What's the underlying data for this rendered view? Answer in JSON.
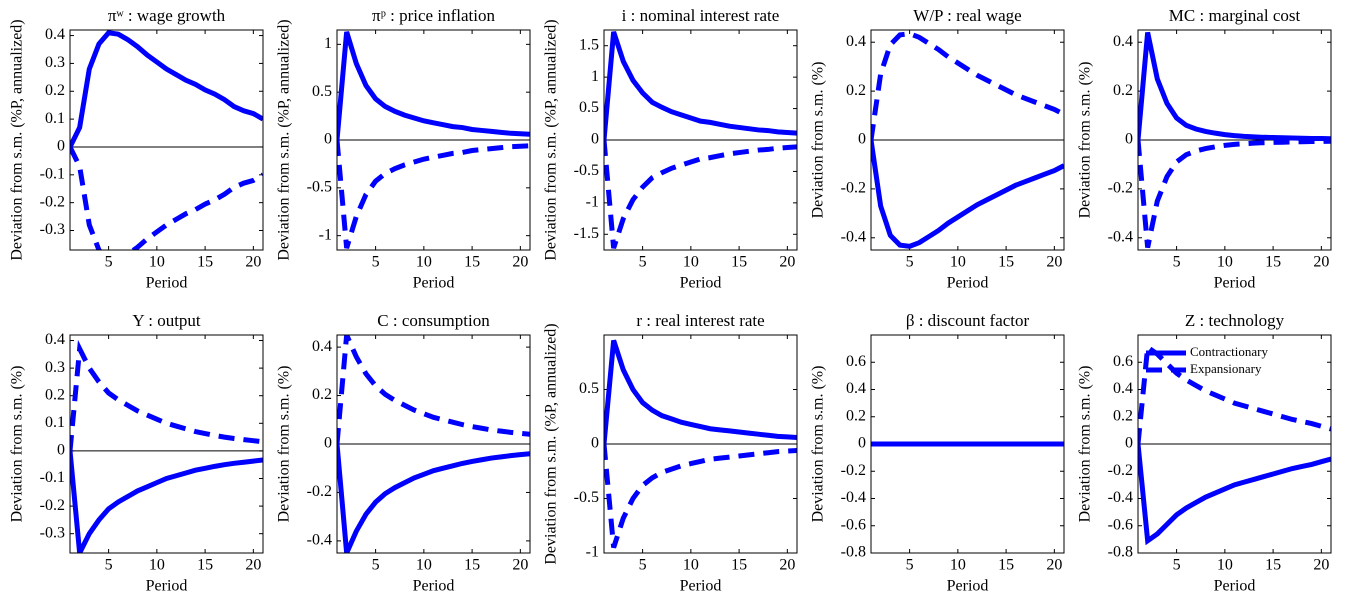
{
  "chart_data": [
    {
      "type": "line",
      "title": "πʷ : wage growth",
      "xlabel": "Period",
      "ylabel": "Deviation from s.m. (%P, annualized)",
      "x": [
        1,
        2,
        3,
        4,
        5,
        6,
        7,
        8,
        9,
        10,
        11,
        12,
        13,
        14,
        15,
        16,
        17,
        18,
        19,
        20,
        21
      ],
      "xlim": [
        1,
        21
      ],
      "xticks": [
        5,
        10,
        15,
        20
      ],
      "ylim": [
        -0.37,
        0.42
      ],
      "yticks": [
        -0.3,
        -0.2,
        -0.1,
        0,
        0.1,
        0.2,
        0.3,
        0.4
      ],
      "zero_line": true,
      "series": [
        {
          "color": "#0000ff",
          "style": "solid",
          "values": [
            0,
            0.07,
            0.28,
            0.37,
            0.41,
            0.405,
            0.385,
            0.36,
            0.33,
            0.305,
            0.28,
            0.26,
            0.24,
            0.225,
            0.205,
            0.19,
            0.17,
            0.145,
            0.13,
            0.12,
            0.1
          ]
        },
        {
          "color": "#0000ff",
          "style": "dashed",
          "values": [
            0,
            -0.07,
            -0.28,
            -0.37,
            -0.41,
            -0.405,
            -0.385,
            -0.36,
            -0.33,
            -0.305,
            -0.28,
            -0.26,
            -0.24,
            -0.225,
            -0.205,
            -0.19,
            -0.17,
            -0.145,
            -0.13,
            -0.12,
            -0.1
          ]
        }
      ]
    },
    {
      "type": "line",
      "title": "πᵖ : price inflation",
      "xlabel": "Period",
      "ylabel": "Deviation from s.m. (%P, annualized)",
      "x": [
        1,
        2,
        3,
        4,
        5,
        6,
        7,
        8,
        9,
        10,
        11,
        12,
        13,
        14,
        15,
        16,
        17,
        18,
        19,
        20,
        21
      ],
      "xlim": [
        1,
        21
      ],
      "xticks": [
        5,
        10,
        15,
        20
      ],
      "ylim": [
        -1.15,
        1.15
      ],
      "yticks": [
        -1,
        -0.5,
        0,
        0.5,
        1
      ],
      "zero_line": true,
      "series": [
        {
          "color": "#0000ff",
          "style": "solid",
          "values": [
            0,
            1.13,
            0.8,
            0.57,
            0.43,
            0.35,
            0.3,
            0.26,
            0.23,
            0.2,
            0.18,
            0.16,
            0.14,
            0.13,
            0.11,
            0.1,
            0.09,
            0.08,
            0.07,
            0.065,
            0.06
          ]
        },
        {
          "color": "#0000ff",
          "style": "dashed",
          "values": [
            0,
            -1.13,
            -0.8,
            -0.57,
            -0.43,
            -0.35,
            -0.3,
            -0.26,
            -0.23,
            -0.2,
            -0.18,
            -0.16,
            -0.14,
            -0.13,
            -0.11,
            -0.1,
            -0.09,
            -0.08,
            -0.07,
            -0.065,
            -0.06
          ]
        }
      ]
    },
    {
      "type": "line",
      "title": "i : nominal interest rate",
      "xlabel": "Period",
      "ylabel": "Deviation from s.m. (%P, annualized)",
      "x": [
        1,
        2,
        3,
        4,
        5,
        6,
        7,
        8,
        9,
        10,
        11,
        12,
        13,
        14,
        15,
        16,
        17,
        18,
        19,
        20,
        21
      ],
      "xlim": [
        1,
        21
      ],
      "xticks": [
        5,
        10,
        15,
        20
      ],
      "ylim": [
        -1.75,
        1.75
      ],
      "yticks": [
        -1.5,
        -1,
        -0.5,
        0,
        0.5,
        1,
        1.5
      ],
      "zero_line": true,
      "series": [
        {
          "color": "#0000ff",
          "style": "solid",
          "values": [
            0,
            1.72,
            1.25,
            0.95,
            0.75,
            0.6,
            0.52,
            0.45,
            0.4,
            0.35,
            0.3,
            0.28,
            0.25,
            0.22,
            0.2,
            0.18,
            0.16,
            0.15,
            0.13,
            0.12,
            0.11
          ]
        },
        {
          "color": "#0000ff",
          "style": "dashed",
          "values": [
            0,
            -1.72,
            -1.25,
            -0.95,
            -0.75,
            -0.6,
            -0.52,
            -0.45,
            -0.4,
            -0.35,
            -0.3,
            -0.28,
            -0.25,
            -0.22,
            -0.2,
            -0.18,
            -0.16,
            -0.15,
            -0.13,
            -0.12,
            -0.11
          ]
        }
      ]
    },
    {
      "type": "line",
      "title": "W/P : real wage",
      "xlabel": "Period",
      "ylabel": "Deviation from s.m. (%)",
      "x": [
        1,
        2,
        3,
        4,
        5,
        6,
        7,
        8,
        9,
        10,
        11,
        12,
        13,
        14,
        15,
        16,
        17,
        18,
        19,
        20,
        21
      ],
      "xlim": [
        1,
        21
      ],
      "xticks": [
        5,
        10,
        15,
        20
      ],
      "ylim": [
        -0.45,
        0.45
      ],
      "yticks": [
        -0.4,
        -0.2,
        0,
        0.2,
        0.4
      ],
      "zero_line": true,
      "series": [
        {
          "color": "#0000ff",
          "style": "solid",
          "values": [
            0,
            -0.27,
            -0.39,
            -0.43,
            -0.435,
            -0.42,
            -0.395,
            -0.37,
            -0.34,
            -0.315,
            -0.29,
            -0.265,
            -0.245,
            -0.225,
            -0.205,
            -0.185,
            -0.17,
            -0.155,
            -0.14,
            -0.125,
            -0.105
          ]
        },
        {
          "color": "#0000ff",
          "style": "dashed",
          "values": [
            0,
            0.27,
            0.39,
            0.43,
            0.435,
            0.42,
            0.395,
            0.37,
            0.34,
            0.315,
            0.29,
            0.265,
            0.245,
            0.225,
            0.205,
            0.185,
            0.17,
            0.155,
            0.14,
            0.125,
            0.105
          ]
        }
      ]
    },
    {
      "type": "line",
      "title": "MC : marginal cost",
      "xlabel": "Period",
      "ylabel": "Deviation from s.m. (%)",
      "x": [
        1,
        2,
        3,
        4,
        5,
        6,
        7,
        8,
        9,
        10,
        11,
        12,
        13,
        14,
        15,
        16,
        17,
        18,
        19,
        20,
        21
      ],
      "xlim": [
        1,
        21
      ],
      "xticks": [
        5,
        10,
        15,
        20
      ],
      "ylim": [
        -0.45,
        0.45
      ],
      "yticks": [
        -0.4,
        -0.2,
        0,
        0.2,
        0.4
      ],
      "zero_line": true,
      "series": [
        {
          "color": "#0000ff",
          "style": "solid",
          "values": [
            0,
            0.44,
            0.25,
            0.15,
            0.09,
            0.06,
            0.045,
            0.035,
            0.028,
            0.022,
            0.018,
            0.015,
            0.013,
            0.011,
            0.01,
            0.009,
            0.008,
            0.007,
            0.006,
            0.006,
            0.005
          ]
        },
        {
          "color": "#0000ff",
          "style": "dashed",
          "values": [
            0,
            -0.44,
            -0.25,
            -0.15,
            -0.09,
            -0.06,
            -0.045,
            -0.035,
            -0.028,
            -0.022,
            -0.018,
            -0.015,
            -0.013,
            -0.011,
            -0.01,
            -0.009,
            -0.008,
            -0.007,
            -0.006,
            -0.006,
            -0.005
          ]
        }
      ]
    },
    {
      "type": "line",
      "title": "Y : output",
      "xlabel": "Period",
      "ylabel": "Deviation from s.m. (%)",
      "x": [
        1,
        2,
        3,
        4,
        5,
        6,
        7,
        8,
        9,
        10,
        11,
        12,
        13,
        14,
        15,
        16,
        17,
        18,
        19,
        20,
        21
      ],
      "xlim": [
        1,
        21
      ],
      "xticks": [
        5,
        10,
        15,
        20
      ],
      "ylim": [
        -0.37,
        0.42
      ],
      "yticks": [
        -0.3,
        -0.2,
        -0.1,
        0,
        0.1,
        0.2,
        0.3,
        0.4
      ],
      "zero_line": true,
      "series": [
        {
          "color": "#0000ff",
          "style": "solid",
          "values": [
            0,
            -0.37,
            -0.3,
            -0.25,
            -0.21,
            -0.185,
            -0.165,
            -0.145,
            -0.13,
            -0.115,
            -0.1,
            -0.09,
            -0.08,
            -0.07,
            -0.063,
            -0.056,
            -0.05,
            -0.045,
            -0.041,
            -0.037,
            -0.033
          ]
        },
        {
          "color": "#0000ff",
          "style": "dashed",
          "values": [
            0,
            0.37,
            0.3,
            0.25,
            0.21,
            0.185,
            0.165,
            0.145,
            0.13,
            0.115,
            0.1,
            0.09,
            0.08,
            0.07,
            0.063,
            0.056,
            0.05,
            0.045,
            0.041,
            0.037,
            0.033
          ]
        }
      ]
    },
    {
      "type": "line",
      "title": "C : consumption",
      "xlabel": "Period",
      "ylabel": "Deviation from s.m. (%)",
      "x": [
        1,
        2,
        3,
        4,
        5,
        6,
        7,
        8,
        9,
        10,
        11,
        12,
        13,
        14,
        15,
        16,
        17,
        18,
        19,
        20,
        21
      ],
      "xlim": [
        1,
        21
      ],
      "xticks": [
        5,
        10,
        15,
        20
      ],
      "ylim": [
        -0.45,
        0.45
      ],
      "yticks": [
        -0.4,
        -0.2,
        0,
        0.2,
        0.4
      ],
      "zero_line": true,
      "series": [
        {
          "color": "#0000ff",
          "style": "solid",
          "values": [
            0,
            -0.45,
            -0.36,
            -0.29,
            -0.24,
            -0.205,
            -0.18,
            -0.16,
            -0.14,
            -0.125,
            -0.11,
            -0.1,
            -0.09,
            -0.08,
            -0.072,
            -0.065,
            -0.058,
            -0.053,
            -0.048,
            -0.044,
            -0.04
          ]
        },
        {
          "color": "#0000ff",
          "style": "dashed",
          "values": [
            0,
            0.45,
            0.36,
            0.29,
            0.24,
            0.205,
            0.18,
            0.16,
            0.14,
            0.125,
            0.11,
            0.1,
            0.09,
            0.08,
            0.072,
            0.065,
            0.058,
            0.053,
            0.048,
            0.044,
            0.04
          ]
        }
      ]
    },
    {
      "type": "line",
      "title": "r : real interest rate",
      "xlabel": "Period",
      "ylabel": "Deviation from s.m. (%P, annualized)",
      "x": [
        1,
        2,
        3,
        4,
        5,
        6,
        7,
        8,
        9,
        10,
        11,
        12,
        13,
        14,
        15,
        16,
        17,
        18,
        19,
        20,
        21
      ],
      "xlim": [
        1,
        21
      ],
      "xticks": [
        5,
        10,
        15,
        20
      ],
      "ylim": [
        -1,
        1
      ],
      "yticks": [
        -1,
        -0.5,
        0,
        0.5
      ],
      "zero_line": true,
      "series": [
        {
          "color": "#0000ff",
          "style": "solid",
          "values": [
            0,
            0.95,
            0.68,
            0.5,
            0.38,
            0.31,
            0.26,
            0.23,
            0.2,
            0.18,
            0.16,
            0.14,
            0.13,
            0.12,
            0.11,
            0.1,
            0.09,
            0.08,
            0.07,
            0.065,
            0.06
          ]
        },
        {
          "color": "#0000ff",
          "style": "dashed",
          "values": [
            0,
            -0.95,
            -0.68,
            -0.5,
            -0.38,
            -0.31,
            -0.26,
            -0.23,
            -0.2,
            -0.18,
            -0.16,
            -0.14,
            -0.13,
            -0.12,
            -0.11,
            -0.1,
            -0.09,
            -0.08,
            -0.07,
            -0.065,
            -0.06
          ]
        }
      ]
    },
    {
      "type": "line",
      "title": "β : discount factor",
      "xlabel": "Period",
      "ylabel": "Deviation from s.m. (%)",
      "x": [
        1,
        2,
        3,
        4,
        5,
        6,
        7,
        8,
        9,
        10,
        11,
        12,
        13,
        14,
        15,
        16,
        17,
        18,
        19,
        20,
        21
      ],
      "xlim": [
        1,
        21
      ],
      "xticks": [
        5,
        10,
        15,
        20
      ],
      "ylim": [
        -0.8,
        0.8
      ],
      "yticks": [
        -0.8,
        -0.6,
        -0.4,
        -0.2,
        0,
        0.2,
        0.4,
        0.6
      ],
      "zero_line": true,
      "series": [
        {
          "color": "#0000ff",
          "style": "solid",
          "values": [
            0,
            0,
            0,
            0,
            0,
            0,
            0,
            0,
            0,
            0,
            0,
            0,
            0,
            0,
            0,
            0,
            0,
            0,
            0,
            0,
            0
          ]
        },
        {
          "color": "#0000ff",
          "style": "dashed",
          "values": [
            0,
            0,
            0,
            0,
            0,
            0,
            0,
            0,
            0,
            0,
            0,
            0,
            0,
            0,
            0,
            0,
            0,
            0,
            0,
            0,
            0
          ]
        }
      ]
    },
    {
      "type": "line",
      "title": "Z : technology",
      "xlabel": "Period",
      "ylabel": "Deviation from s.m. (%)",
      "x": [
        1,
        2,
        3,
        4,
        5,
        6,
        7,
        8,
        9,
        10,
        11,
        12,
        13,
        14,
        15,
        16,
        17,
        18,
        19,
        20,
        21
      ],
      "xlim": [
        1,
        21
      ],
      "xticks": [
        5,
        10,
        15,
        20
      ],
      "ylim": [
        -0.8,
        0.8
      ],
      "yticks": [
        -0.8,
        -0.6,
        -0.4,
        -0.2,
        0,
        0.2,
        0.4,
        0.6
      ],
      "zero_line": true,
      "legend": "upper left",
      "series": [
        {
          "name": "Contractionary",
          "color": "#0000ff",
          "style": "solid",
          "values": [
            0,
            -0.71,
            -0.66,
            -0.59,
            -0.52,
            -0.47,
            -0.43,
            -0.39,
            -0.36,
            -0.33,
            -0.3,
            -0.28,
            -0.26,
            -0.24,
            -0.22,
            -0.2,
            -0.18,
            -0.165,
            -0.15,
            -0.13,
            -0.11
          ]
        },
        {
          "name": "Expansionary",
          "color": "#0000ff",
          "style": "dashed",
          "values": [
            0,
            0.71,
            0.66,
            0.59,
            0.52,
            0.47,
            0.43,
            0.39,
            0.36,
            0.33,
            0.3,
            0.28,
            0.26,
            0.24,
            0.22,
            0.2,
            0.18,
            0.165,
            0.15,
            0.13,
            0.11
          ]
        }
      ]
    }
  ]
}
